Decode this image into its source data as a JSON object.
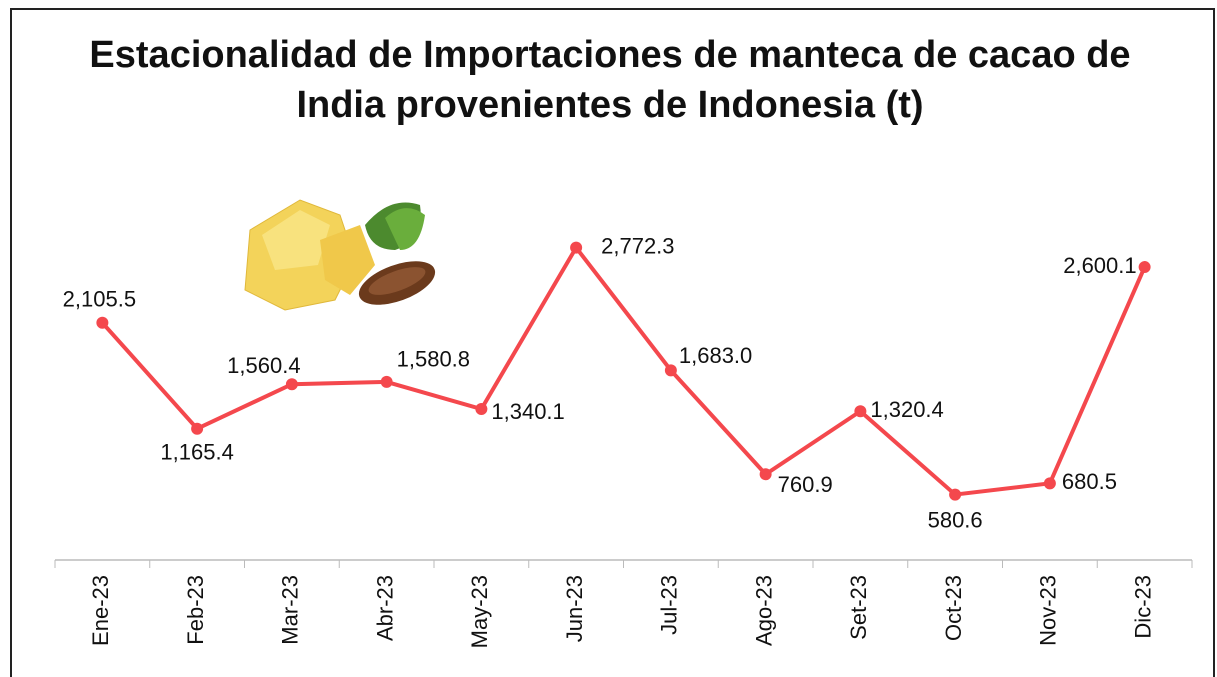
{
  "chart_data": {
    "type": "line",
    "title": "Estacionalidad de Importaciones de manteca de cacao de India provenientes de Indonesia (t)",
    "categories": [
      "Ene-23",
      "Feb-23",
      "Mar-23",
      "Abr-23",
      "May-23",
      "Jun-23",
      "Jul-23",
      "Ago-23",
      "Set-23",
      "Oct-23",
      "Nov-23",
      "Dic-23"
    ],
    "values": [
      2105.5,
      1165.4,
      1560.4,
      1580.8,
      1340.1,
      2772.3,
      1683.0,
      760.9,
      1320.4,
      580.6,
      680.5,
      2600.1
    ],
    "value_labels": [
      "2,105.5",
      "1,165.4",
      "1,560.4",
      "1,580.8",
      "1,340.1",
      "2,772.3",
      "1,683.0",
      "760.9",
      "1,320.4",
      "580.6",
      "680.5",
      "2,600.1"
    ],
    "color": "#f4484d",
    "ylim": [
      0,
      3000
    ]
  }
}
